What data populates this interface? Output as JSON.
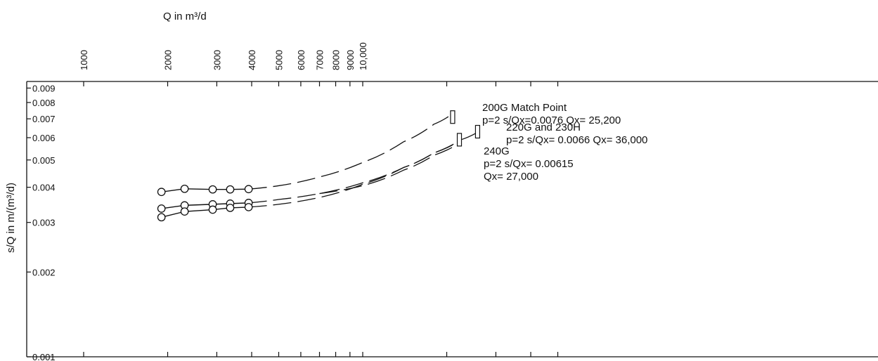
{
  "chart_data": {
    "type": "scatter",
    "title": "",
    "xlabel": "Q in m³/d",
    "ylabel": "s/Q in m/(m³/d)",
    "xscale": "log",
    "yscale": "log",
    "xlim": [
      600,
      60000
    ],
    "ylim": [
      0.001,
      0.0095
    ],
    "x_ticks": [
      1000,
      2000,
      3000,
      4000,
      5000,
      6000,
      7000,
      8000,
      9000,
      10000
    ],
    "x_tick_labels": [
      "1000",
      "2000",
      "3000",
      "4000",
      "5000",
      "6000",
      "7000",
      "8000",
      "9000",
      "10,000"
    ],
    "x_axis_position": "top",
    "y_ticks": [
      0.001,
      0.002,
      0.003,
      0.004,
      0.005,
      0.006,
      0.007,
      0.008,
      0.009
    ],
    "y_tick_labels": [
      "0.001",
      "0.002",
      "0.003",
      "0.004",
      "0.005",
      "0.006",
      "0.007",
      "0.008",
      "0.009"
    ],
    "grid": false,
    "series": [
      {
        "style": "circles-solid",
        "x": [
          1900,
          2300,
          2900,
          3350,
          3900
        ],
        "y": [
          0.00385,
          0.00395,
          0.00393,
          0.00393,
          0.00394
        ]
      },
      {
        "style": "circles-solid",
        "x": [
          1900,
          2300,
          2900,
          3350,
          3900
        ],
        "y": [
          0.00336,
          0.00345,
          0.00348,
          0.0035,
          0.00352
        ]
      },
      {
        "style": "circles-solid",
        "x": [
          1900,
          2300,
          2900,
          3350,
          3900
        ],
        "y": [
          0.00313,
          0.00328,
          0.00333,
          0.00338,
          0.0034
        ]
      },
      {
        "style": "dashed",
        "x": [
          3900,
          5000,
          7000,
          10000,
          14000,
          18000,
          21000
        ],
        "y": [
          0.00394,
          0.00405,
          0.00435,
          0.0049,
          0.0058,
          0.0067,
          0.0073
        ]
      },
      {
        "style": "dashed",
        "x": [
          3900,
          5000,
          7000,
          10000,
          14000,
          18000,
          22500,
          26000
        ],
        "y": [
          0.00352,
          0.00362,
          0.0038,
          0.00415,
          0.0047,
          0.0053,
          0.0059,
          0.0063
        ]
      },
      {
        "style": "dashed",
        "x": [
          3900,
          5000,
          7000,
          10000,
          14000,
          18000,
          22000
        ],
        "y": [
          0.0034,
          0.00348,
          0.00368,
          0.0041,
          0.0047,
          0.0053,
          0.0058
        ]
      },
      {
        "style": "dashed",
        "x": [
          7000,
          10000,
          14000,
          18000,
          22000
        ],
        "y": [
          0.0038,
          0.00405,
          0.0046,
          0.0052,
          0.0057
        ]
      }
    ],
    "match_points": [
      {
        "x": 21000,
        "y": 0.0071
      },
      {
        "x": 22200,
        "y": 0.0059
      },
      {
        "x": 25800,
        "y": 0.0063
      }
    ],
    "annotations": [
      {
        "lines": [
          "200G Match Point",
          "p=2  s/Qx=0.0076  Qx= 25,200"
        ]
      },
      {
        "lines": [
          "220G and 230H",
          "p=2  s/Qx= 0.0066  Qx= 36,000"
        ]
      },
      {
        "lines": [
          "240G",
          "p=2  s/Qx= 0.00615",
          "Qx= 27,000"
        ]
      }
    ]
  }
}
